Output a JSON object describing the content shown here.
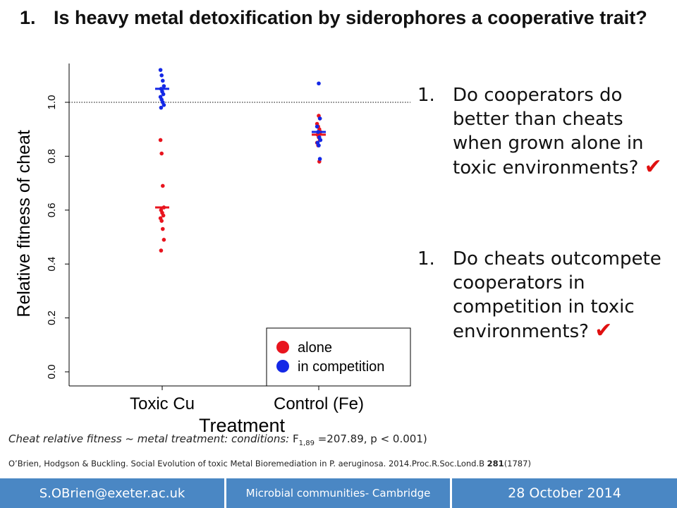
{
  "slide": {
    "title_number": "1.",
    "title_text": "Is heavy metal detoxification by siderophores a cooperative trait?",
    "questions": [
      {
        "number": "1.",
        "text": "Do cooperators do better than cheats when grown alone in toxic environments?",
        "check": "✔"
      },
      {
        "number": "1.",
        "text": "Do cheats outcompete cooperators in competition in toxic environments?",
        "check": "✔"
      }
    ],
    "stats": {
      "italic": "Cheat relative fitness ~ metal treatment: conditions:",
      "f_label": "F",
      "f_sub": "1,89",
      "f_rest": "=207.89, p < 0.001)"
    },
    "reference": {
      "before": "O’Brien, Hodgson & Buckling. Social Evolution of toxic Metal Bioremediation in P. aeruginosa. 2014.Proc.R.Soc.Lond.B ",
      "bold": "281",
      "after": "(1787)"
    },
    "footer": {
      "email": "S.OBrien@exeter.ac.uk",
      "event": "Microbial communities- Cambridge",
      "date": "28 October 2014"
    },
    "colors": {
      "alone": "#e8141e",
      "competition": "#1428e6",
      "check": "#e01010",
      "footer": "#4a87c4"
    }
  },
  "chart_data": {
    "type": "scatter",
    "xlabel": "Treatment",
    "ylabel": "Relative fitness of cheat",
    "categories": [
      "Toxic Cu",
      "Control (Fe)"
    ],
    "yticks": [
      "0.0",
      "0.2",
      "0.4",
      "0.6",
      "0.8",
      "1.0"
    ],
    "ylim": [
      -0.03,
      1.15
    ],
    "reference_line": 1.0,
    "legend_position": "bottom-right",
    "series": [
      {
        "name": "alone",
        "color": "#e8141e",
        "points": [
          {
            "x": "Toxic Cu",
            "y": 0.86
          },
          {
            "x": "Toxic Cu",
            "y": 0.81
          },
          {
            "x": "Toxic Cu",
            "y": 0.69
          },
          {
            "x": "Toxic Cu",
            "y": 0.61
          },
          {
            "x": "Toxic Cu",
            "y": 0.6
          },
          {
            "x": "Toxic Cu",
            "y": 0.59
          },
          {
            "x": "Toxic Cu",
            "y": 0.58
          },
          {
            "x": "Toxic Cu",
            "y": 0.57
          },
          {
            "x": "Toxic Cu",
            "y": 0.56
          },
          {
            "x": "Toxic Cu",
            "y": 0.53
          },
          {
            "x": "Toxic Cu",
            "y": 0.49
          },
          {
            "x": "Toxic Cu",
            "y": 0.45
          },
          {
            "x": "Control (Fe)",
            "y": 0.95
          },
          {
            "x": "Control (Fe)",
            "y": 0.94
          },
          {
            "x": "Control (Fe)",
            "y": 0.92
          },
          {
            "x": "Control (Fe)",
            "y": 0.91
          },
          {
            "x": "Control (Fe)",
            "y": 0.9
          },
          {
            "x": "Control (Fe)",
            "y": 0.89
          },
          {
            "x": "Control (Fe)",
            "y": 0.88
          },
          {
            "x": "Control (Fe)",
            "y": 0.87
          },
          {
            "x": "Control (Fe)",
            "y": 0.86
          },
          {
            "x": "Control (Fe)",
            "y": 0.85
          },
          {
            "x": "Control (Fe)",
            "y": 0.84
          },
          {
            "x": "Control (Fe)",
            "y": 0.78
          }
        ],
        "means": [
          {
            "x": "Toxic Cu",
            "y": 0.61
          },
          {
            "x": "Control (Fe)",
            "y": 0.88
          }
        ]
      },
      {
        "name": "in competition",
        "color": "#1428e6",
        "points": [
          {
            "x": "Toxic Cu",
            "y": 1.12
          },
          {
            "x": "Toxic Cu",
            "y": 1.1
          },
          {
            "x": "Toxic Cu",
            "y": 1.08
          },
          {
            "x": "Toxic Cu",
            "y": 1.06
          },
          {
            "x": "Toxic Cu",
            "y": 1.05
          },
          {
            "x": "Toxic Cu",
            "y": 1.04
          },
          {
            "x": "Toxic Cu",
            "y": 1.03
          },
          {
            "x": "Toxic Cu",
            "y": 1.02
          },
          {
            "x": "Toxic Cu",
            "y": 1.01
          },
          {
            "x": "Toxic Cu",
            "y": 1.0
          },
          {
            "x": "Toxic Cu",
            "y": 0.99
          },
          {
            "x": "Toxic Cu",
            "y": 0.98
          },
          {
            "x": "Control (Fe)",
            "y": 1.07
          },
          {
            "x": "Control (Fe)",
            "y": 0.94
          },
          {
            "x": "Control (Fe)",
            "y": 0.91
          },
          {
            "x": "Control (Fe)",
            "y": 0.89
          },
          {
            "x": "Control (Fe)",
            "y": 0.87
          },
          {
            "x": "Control (Fe)",
            "y": 0.86
          },
          {
            "x": "Control (Fe)",
            "y": 0.85
          },
          {
            "x": "Control (Fe)",
            "y": 0.84
          },
          {
            "x": "Control (Fe)",
            "y": 0.79
          }
        ],
        "means": [
          {
            "x": "Toxic Cu",
            "y": 1.05
          },
          {
            "x": "Control (Fe)",
            "y": 0.89
          }
        ]
      }
    ]
  }
}
